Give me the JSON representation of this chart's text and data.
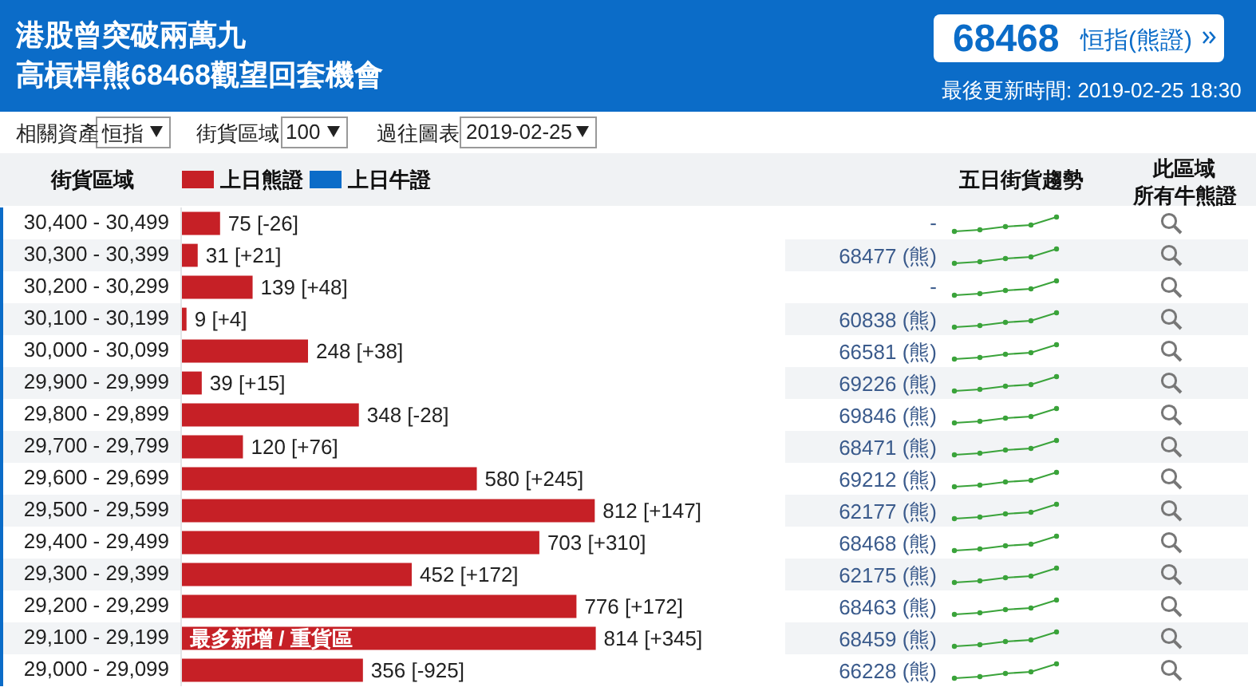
{
  "chart_data": {
    "type": "bar",
    "orientation": "horizontal",
    "title": "港股曾突破兩萬九",
    "subtitle": "高槓桿熊68468觀望回套機會",
    "ylabel": "街貨區域",
    "categories": [
      "30,400 - 30,499",
      "30,300 - 30,399",
      "30,200 - 30,299",
      "30,100 - 30,199",
      "30,000 - 30,099",
      "29,900 - 29,999",
      "29,800 - 29,899",
      "29,700 - 29,799",
      "29,600 - 29,699",
      "29,500 - 29,599",
      "29,400 - 29,499",
      "29,300 - 29,399",
      "29,200 - 29,299",
      "29,100 - 29,199",
      "29,000 - 29,099"
    ],
    "series": [
      {
        "name": "上日熊證",
        "color": "#c62026",
        "values": [
          75,
          31,
          139,
          9,
          248,
          39,
          348,
          120,
          580,
          812,
          703,
          452,
          776,
          814,
          356
        ],
        "value_labels": [
          "75 [-26]",
          "31 [+21]",
          "139 [+48]",
          "9 [+4]",
          "248 [+38]",
          "39 [+15]",
          "348 [-28]",
          "120 [+76]",
          "580 [+245]",
          "812 [+147]",
          "703 [+310]",
          "452 [+172]",
          "776 [+172]",
          "814 [+345]",
          "356 [-925]"
        ]
      },
      {
        "name": "上日牛證",
        "color": "#0b6cc8",
        "values": [
          null,
          null,
          null,
          null,
          null,
          null,
          null,
          null,
          null,
          null,
          null,
          null,
          null,
          null,
          null
        ]
      }
    ],
    "legend": "top left",
    "tick_labels": "y",
    "annotations": [
      "68468",
      "恒指(熊證)",
      "最後更新時間: 2019-02-25 18:30",
      "相關資產",
      "恒指",
      "街貨區域",
      "100",
      "過往圖表",
      "2019-02-25",
      "五日街貨趨勢",
      "此區域",
      "所有牛熊證",
      "-",
      "68477 (熊)",
      "-",
      "60838 (熊)",
      "66581 (熊)",
      "69226 (熊)",
      "69846 (熊)",
      "68471 (熊)",
      "69212 (熊)",
      "62177 (熊)",
      "68468 (熊)",
      "62175 (熊)",
      "68463 (熊)",
      "68459 (熊)",
      "66228 (熊)",
      {
        "text": "最多新增 / 重貨區",
        "y": "29,100 - 29,199"
      }
    ]
  }
}
